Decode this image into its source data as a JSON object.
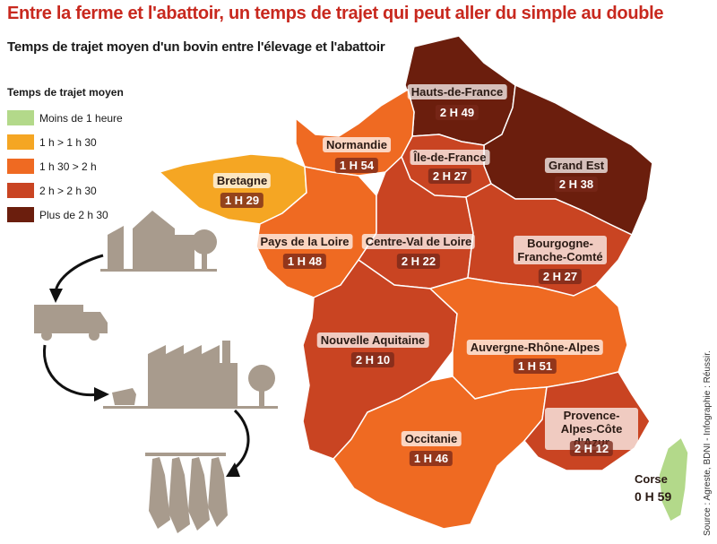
{
  "title": "Entre la ferme et l'abattoir, un temps de trajet qui peut aller du simple au double",
  "subtitle": "Temps de trajet moyen d'un bovin entre l'élevage et l'abattoir",
  "colors": {
    "title": "#c8281e",
    "lt1h": "#b3d98a",
    "1h_1h30": "#f5a623",
    "1h30_2h": "#ef6a22",
    "2h_2h30": "#c94422",
    "gt2h30": "#6b1e0d",
    "pictogram": "#a89b8d"
  },
  "legend": {
    "title": "Temps de trajet moyen",
    "items": [
      {
        "label": "Moins de 1 heure",
        "color": "#b3d98a"
      },
      {
        "label": "1 h > 1 h 30",
        "color": "#f5a623"
      },
      {
        "label": "1 h 30 > 2 h",
        "color": "#ef6a22"
      },
      {
        "label": "2 h > 2 h 30",
        "color": "#c94422"
      },
      {
        "label": "Plus de 2 h 30",
        "color": "#6b1e0d"
      }
    ]
  },
  "regions": {
    "hauts_de_france": {
      "name": "Hauts-de-France",
      "time": "2 H 49",
      "color": "#6b1e0d"
    },
    "normandie": {
      "name": "Normandie",
      "time": "1 H 54",
      "color": "#ef6a22"
    },
    "ile_de_france": {
      "name": "Île-de-France",
      "time": "2 H 27",
      "color": "#c94422"
    },
    "grand_est": {
      "name": "Grand Est",
      "time": "2 H 38",
      "color": "#6b1e0d"
    },
    "bretagne": {
      "name": "Bretagne",
      "time": "1 H 29",
      "color": "#f5a623"
    },
    "pays_de_la_loire": {
      "name": "Pays de la Loire",
      "time": "1 H 48",
      "color": "#ef6a22"
    },
    "centre_val_de_loire": {
      "name": "Centre-Val de Loire",
      "time": "2 H 22",
      "color": "#c94422"
    },
    "bourgogne_franche_comte": {
      "name": "Bourgogne-Franche-Comté",
      "time": "2 H 27",
      "color": "#c94422"
    },
    "nouvelle_aquitaine": {
      "name": "Nouvelle Aquitaine",
      "time": "2 H 10",
      "color": "#c94422"
    },
    "auvergne_rhone_alpes": {
      "name": "Auvergne-Rhône-Alpes",
      "time": "1 H 51",
      "color": "#ef6a22"
    },
    "occitanie": {
      "name": "Occitanie",
      "time": "1 H 46",
      "color": "#ef6a22"
    },
    "provence_alpes_cote_d_azur": {
      "name": "Provence-Alpes-Côte d'Azur",
      "time": "2 H 12",
      "color": "#c94422"
    },
    "corse": {
      "name": "Corse",
      "time": "0 H 59",
      "color": "#b3d98a"
    }
  },
  "source": "Source : Agreste, BDNI - Infographie : Réussir."
}
